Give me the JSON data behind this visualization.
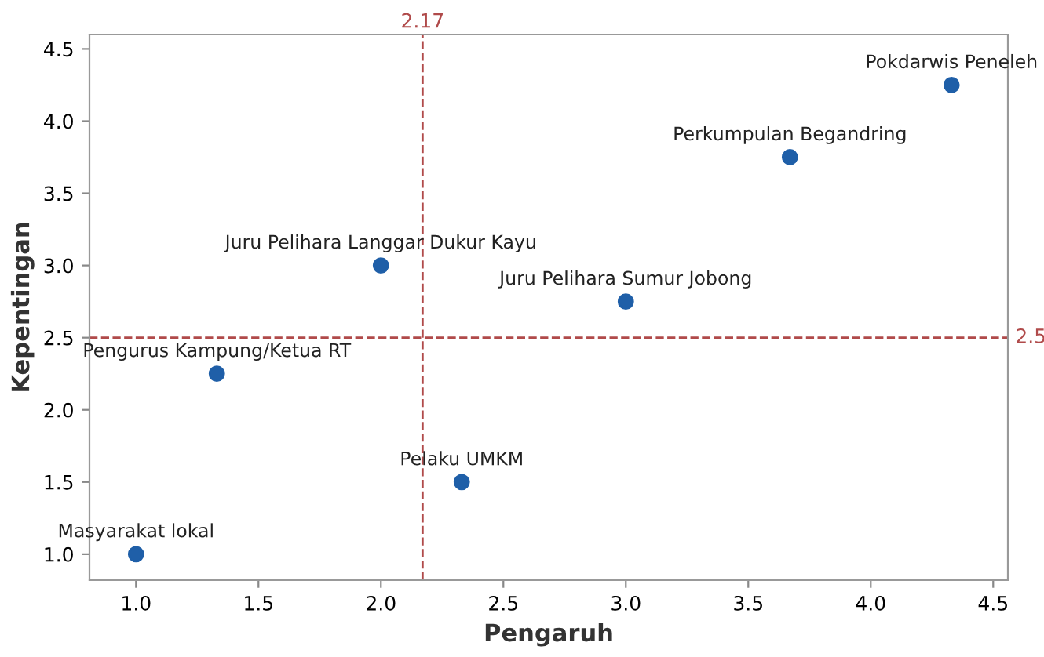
{
  "chart_data": {
    "type": "scatter",
    "xlabel": "Pengaruh",
    "ylabel": "Kepentingan",
    "x": [
      1.0,
      1.33,
      2.0,
      2.33,
      3.0,
      3.67,
      4.33
    ],
    "values": [
      1.0,
      2.25,
      3.0,
      1.5,
      2.75,
      3.75,
      4.25
    ],
    "color": "#1f5fa8",
    "marker": "circle",
    "grid": false,
    "xlim": [
      0.81,
      4.56
    ],
    "ylim": [
      0.82,
      4.6
    ],
    "xticks": [
      {
        "value": 1,
        "label": "1.0"
      },
      {
        "value": 1.5,
        "label": "1.5"
      },
      {
        "value": 2,
        "label": "2.0"
      },
      {
        "value": 2.5,
        "label": "2.5"
      },
      {
        "value": 3,
        "label": "3.0"
      },
      {
        "value": 3.5,
        "label": "3.5"
      },
      {
        "value": 4,
        "label": "4.0"
      },
      {
        "value": 4.5,
        "label": "4.5"
      }
    ],
    "yticks": [
      {
        "value": 1,
        "label": "1.0"
      },
      {
        "value": 1.5,
        "label": "1.5"
      },
      {
        "value": 2,
        "label": "2.0"
      },
      {
        "value": 2.5,
        "label": "2.5"
      },
      {
        "value": 3,
        "label": "3.0"
      },
      {
        "value": 3.5,
        "label": "3.5"
      },
      {
        "value": 4,
        "label": "4.0"
      },
      {
        "value": 4.5,
        "label": "4.5"
      }
    ],
    "ref_lines": [
      {
        "axis": "x",
        "value": 2.17,
        "label": "2.17",
        "color": "#b04a4a",
        "line_style": "dashed"
      },
      {
        "axis": "y",
        "value": 2.5,
        "label": "2.5",
        "color": "#b04a4a",
        "line_style": "dashed"
      }
    ],
    "annotations": [
      {
        "text": "Masyarakat lokal",
        "x": 1.0,
        "y": 1.0
      },
      {
        "text": "Pengurus Kampung/Ketua RT",
        "x": 1.33,
        "y": 2.25
      },
      {
        "text": "Juru Pelihara Langgar Dukur Kayu",
        "x": 2.0,
        "y": 3.0
      },
      {
        "text": "Pelaku UMKM",
        "x": 2.33,
        "y": 1.5
      },
      {
        "text": "Juru Pelihara Sumur Jobong",
        "x": 3.0,
        "y": 2.75
      },
      {
        "text": "Perkumpulan Begandring",
        "x": 3.67,
        "y": 3.75
      },
      {
        "text": "Pokdarwis Peneleh",
        "x": 4.33,
        "y": 4.25
      }
    ]
  }
}
